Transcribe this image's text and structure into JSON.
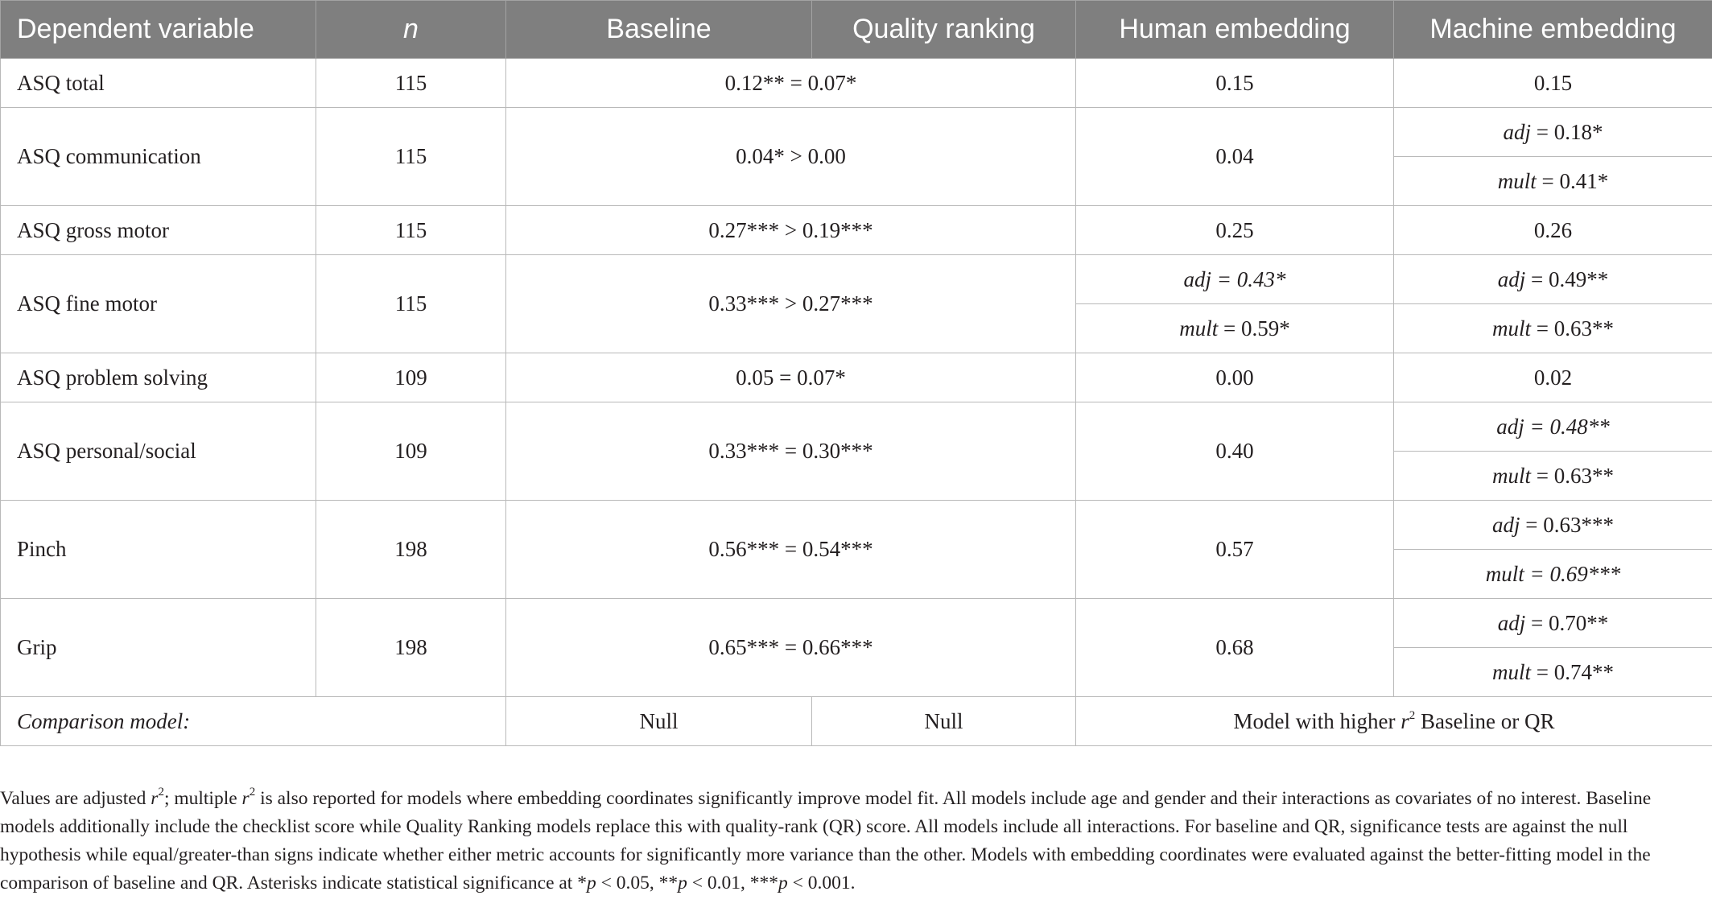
{
  "table": {
    "headers": {
      "dependent_variable": "Dependent variable",
      "n": "n",
      "baseline": "Baseline",
      "quality_ranking": "Quality ranking",
      "human_embedding": "Human embedding",
      "machine_embedding": "Machine embedding"
    },
    "rows": [
      {
        "dv": "ASQ total",
        "n": "115",
        "comparison": "0.12** = 0.07*",
        "human": "0.15",
        "machine": "0.15"
      },
      {
        "dv": "ASQ communication",
        "n": "115",
        "comparison": "0.04* > 0.00",
        "human": "0.04",
        "machine_adj_label": "adj",
        "machine_adj_value": " = 0.18*",
        "machine_mult_label": "mult",
        "machine_mult_value": " = 0.41*"
      },
      {
        "dv": "ASQ gross motor",
        "n": "115",
        "comparison": "0.27*** > 0.19***",
        "human": "0.25",
        "machine": "0.26"
      },
      {
        "dv": "ASQ fine motor",
        "n": "115",
        "comparison": "0.33*** > 0.27***",
        "human_adj_label": "adj",
        "human_adj_value": " = 0.43*",
        "human_mult_label": "mult",
        "human_mult_value": " = 0.59*",
        "machine_adj_label": "adj",
        "machine_adj_value": " = 0.49**",
        "machine_mult_label": "mult",
        "machine_mult_value": " = 0.63**"
      },
      {
        "dv": "ASQ problem solving",
        "n": "109",
        "comparison": "0.05 = 0.07*",
        "human": "0.00",
        "machine": "0.02"
      },
      {
        "dv": "ASQ personal/social",
        "n": "109",
        "comparison": "0.33*** = 0.30***",
        "human": "0.40",
        "machine_adj_label": "adj",
        "machine_adj_value": " = 0.48**",
        "machine_mult_label": "mult",
        "machine_mult_value": " = 0.63**"
      },
      {
        "dv": "Pinch",
        "n": "198",
        "comparison": "0.56*** = 0.54***",
        "human": "0.57",
        "machine_adj_label": "adj",
        "machine_adj_value": " = 0.63***",
        "machine_mult_label": "mult",
        "machine_mult_value": " = 0.69***"
      },
      {
        "dv": "Grip",
        "n": "198",
        "comparison": "0.65*** = 0.66***",
        "human": "0.68",
        "machine_adj_label": "adj",
        "machine_adj_value": " = 0.70**",
        "machine_mult_label": "mult",
        "machine_mult_value": " = 0.74**"
      }
    ],
    "comparison_row": {
      "label": "Comparison model:",
      "baseline": "Null",
      "quality_ranking": "Null",
      "embedding_prefix": "Model with higher ",
      "embedding_r": "r",
      "embedding_sup": "2",
      "embedding_suffix": " Baseline or QR"
    }
  },
  "footnote": {
    "part1": "Values are adjusted ",
    "r1": "r",
    "sup1": "2",
    "part2": "; multiple ",
    "r2": "r",
    "sup2": "2",
    "part3": " is also reported for models where embedding coordinates significantly improve model fit. All models include age and gender and their interactions as covariates of no interest. Baseline models additionally include the checklist score while Quality Ranking models replace this with quality-rank (QR) score. All models include all interactions. For baseline and QR, significance tests are against the null hypothesis while equal/greater-than signs indicate whether either metric accounts for significantly more variance than the other. Models with embedding coordinates were evaluated against the better-fitting model in the comparison of baseline and QR. Asterisks indicate statistical significance at *",
    "p1": "p",
    "t1": " < 0.05, **",
    "p2": "p",
    "t2": " < 0.01, ***",
    "p3": "p",
    "t3": " < 0.001."
  }
}
